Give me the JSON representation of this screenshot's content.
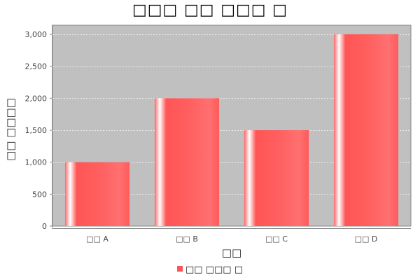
{
  "chart_data": {
    "type": "bar",
    "title": "□□□ □□ □□□ □",
    "xlabel": "□□",
    "ylabel": "□□ □□□□",
    "categories": [
      "□□ A",
      "□□ B",
      "□□ C",
      "□□ D"
    ],
    "series": [
      {
        "name": "□□ □□□ □",
        "values": [
          1000,
          2000,
          1500,
          3000
        ]
      }
    ],
    "ylim": [
      0,
      3000
    ],
    "yticks": [
      0,
      500,
      1000,
      1500,
      2000,
      2500,
      3000
    ],
    "ytick_labels": [
      "0",
      "500",
      "1,000",
      "1,500",
      "2,000",
      "2,500",
      "3,000"
    ],
    "grid": true,
    "legend_position": "bottom"
  },
  "colors": {
    "plot_background": "#c0c0c0",
    "bar": "#ff5555",
    "grid": "#ffffff",
    "axis": "#888888"
  }
}
